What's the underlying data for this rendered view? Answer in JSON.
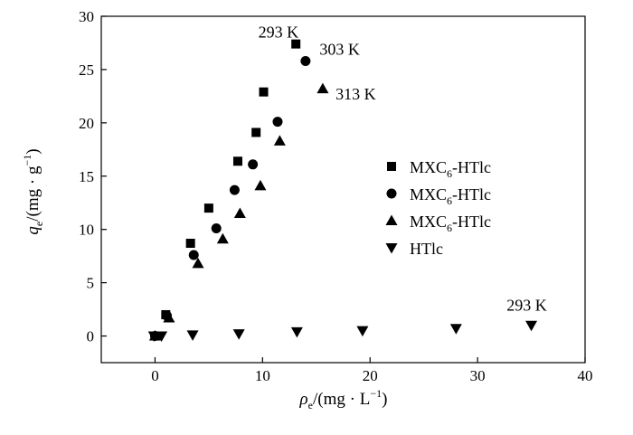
{
  "chart_data": {
    "type": "scatter",
    "xlabel": "ρe/(mg·L−1)",
    "ylabel": "qe/(mg·g−1)",
    "xlim": [
      -5,
      40
    ],
    "ylim": [
      -2.5,
      30
    ],
    "xticks": [
      0,
      10,
      20,
      30,
      40
    ],
    "yticks": [
      0,
      5,
      10,
      15,
      20,
      25,
      30
    ],
    "grid": false,
    "legend_position": "right",
    "series": [
      {
        "name": "MXC6-HTlc",
        "marker": "square",
        "x": [
          0.0,
          1.0,
          3.3,
          5.0,
          7.7,
          9.4,
          10.1,
          13.1
        ],
        "y": [
          0.0,
          2.0,
          8.7,
          12.0,
          16.4,
          19.1,
          22.9,
          27.4
        ]
      },
      {
        "name": "MXC6-HTlc",
        "marker": "circle",
        "x": [
          0.0,
          1.1,
          3.6,
          5.7,
          7.4,
          9.1,
          11.4,
          14.0
        ],
        "y": [
          0.0,
          1.9,
          7.6,
          10.1,
          13.7,
          16.1,
          20.1,
          25.8
        ]
      },
      {
        "name": "MXC6-HTlc",
        "marker": "triangle-up",
        "x": [
          0.0,
          1.3,
          4.0,
          6.3,
          7.9,
          9.8,
          11.6,
          15.6
        ],
        "y": [
          0.0,
          1.7,
          6.8,
          9.1,
          11.5,
          14.1,
          18.3,
          23.2
        ]
      },
      {
        "name": "HTlc",
        "marker": "triangle-down",
        "x": [
          -0.1,
          0.6,
          3.5,
          7.8,
          13.2,
          19.3,
          28.0,
          35.0
        ],
        "y": [
          0.0,
          0.0,
          0.1,
          0.2,
          0.4,
          0.5,
          0.7,
          1.0
        ]
      }
    ],
    "annotations": [
      {
        "text": "293 K",
        "x": 9.6,
        "y": 28.0,
        "anchor": "start"
      },
      {
        "text": "303 K",
        "x": 15.3,
        "y": 26.4,
        "anchor": "start"
      },
      {
        "text": "313 K",
        "x": 16.8,
        "y": 22.2,
        "anchor": "start"
      },
      {
        "text": "293 K",
        "x": 32.7,
        "y": 2.4,
        "anchor": "start"
      }
    ],
    "colors": {
      "marker": "#000000",
      "axis": "#000000"
    }
  }
}
